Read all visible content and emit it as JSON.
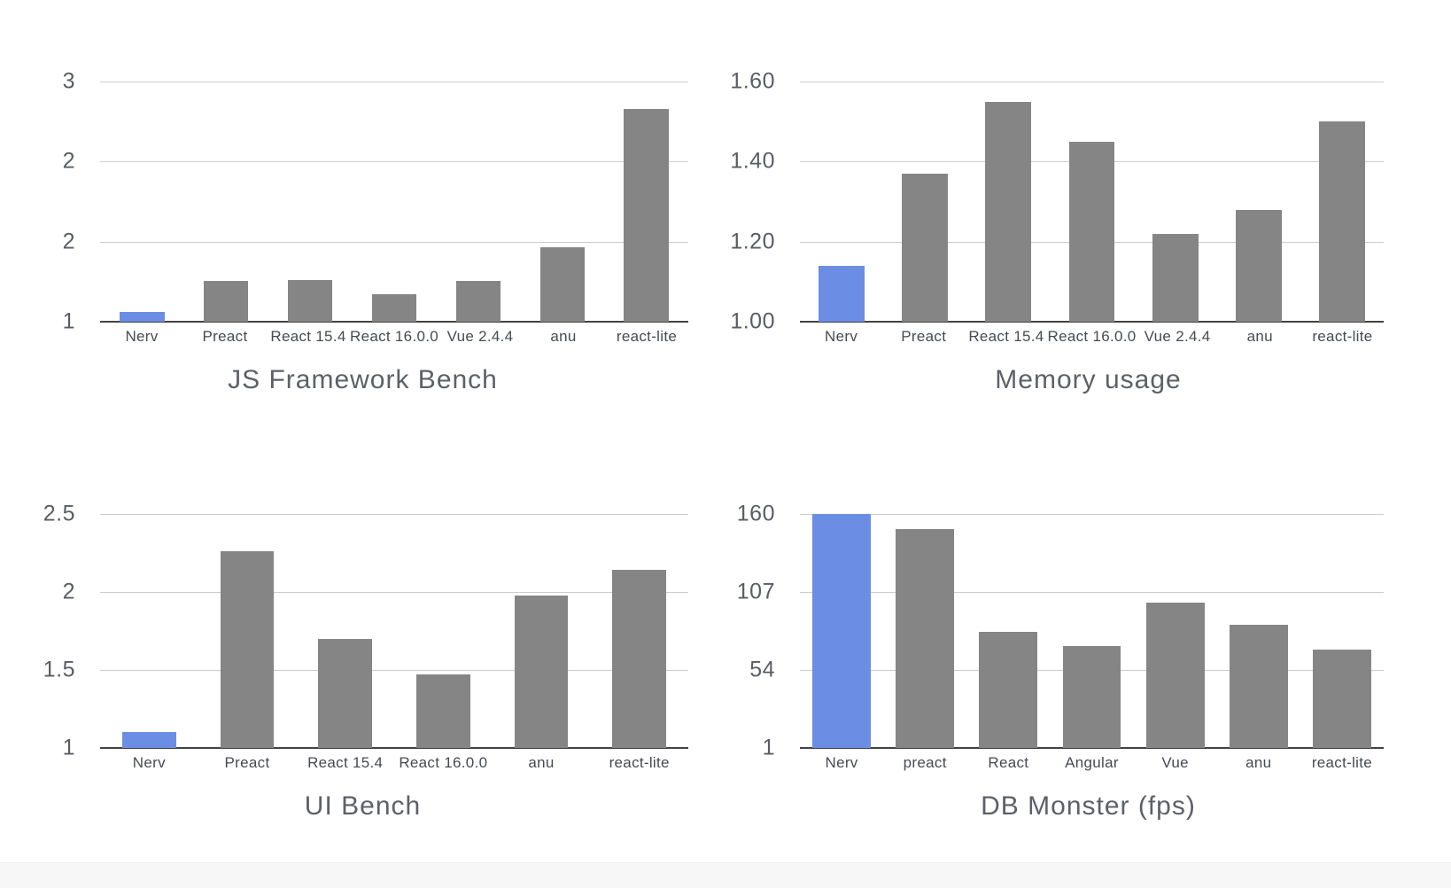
{
  "page": {
    "background": "#ffffff",
    "footer_band_color": "#f7f7f8"
  },
  "colors": {
    "highlight_bar": "#6b8ee4",
    "default_bar": "#858585",
    "gridline": "#cccccc",
    "axis_line": "#424242",
    "tick_label": "#595d63",
    "category_label": "#464b52",
    "title": "#5d6167"
  },
  "chart_data": [
    {
      "type": "bar",
      "title": "JS Framework Bench",
      "categories": [
        "Nerv",
        "Preact",
        "React 15.4",
        "React 16.0.0",
        "Vue 2.4.4",
        "anu",
        "react-lite"
      ],
      "values": [
        1.08,
        1.34,
        1.35,
        1.23,
        1.34,
        1.62,
        2.77
      ],
      "highlight_index": 0,
      "ylim": [
        1,
        3
      ],
      "yticks": [
        {
          "value": 1,
          "label": "1"
        },
        {
          "value": 1.667,
          "label": "2"
        },
        {
          "value": 2.333,
          "label": "2"
        },
        {
          "value": 3,
          "label": "3"
        }
      ],
      "grid": true,
      "legend": "none",
      "bar_width_pct": 53
    },
    {
      "type": "bar",
      "title": "Memory usage",
      "categories": [
        "Nerv",
        "Preact",
        "React 15.4",
        "React 16.0.0",
        "Vue 2.4.4",
        "anu",
        "react-lite"
      ],
      "values": [
        1.14,
        1.37,
        1.55,
        1.45,
        1.22,
        1.28,
        1.5
      ],
      "highlight_index": 0,
      "ylim": [
        1.0,
        1.6
      ],
      "yticks": [
        {
          "value": 1.0,
          "label": "1.00"
        },
        {
          "value": 1.2,
          "label": "1.20"
        },
        {
          "value": 1.4,
          "label": "1.40"
        },
        {
          "value": 1.6,
          "label": "1.60"
        }
      ],
      "grid": true,
      "legend": "none",
      "bar_width_pct": 55
    },
    {
      "type": "bar",
      "title": "UI Bench",
      "categories": [
        "Nerv",
        "Preact",
        "React 15.4",
        "React 16.0.0",
        "anu",
        "react-lite"
      ],
      "values": [
        1.1,
        2.26,
        1.7,
        1.47,
        1.98,
        2.14
      ],
      "highlight_index": 0,
      "ylim": [
        1,
        2.5
      ],
      "yticks": [
        {
          "value": 1,
          "label": "1"
        },
        {
          "value": 1.5,
          "label": "1.5"
        },
        {
          "value": 2,
          "label": "2"
        },
        {
          "value": 2.5,
          "label": "2.5"
        }
      ],
      "grid": true,
      "legend": "none",
      "bar_width_pct": 55
    },
    {
      "type": "bar",
      "title": "DB Monster (fps)",
      "categories": [
        "Nerv",
        "preact",
        "React",
        "Angular",
        "Vue",
        "anu",
        "react-lite"
      ],
      "values": [
        160,
        150,
        80,
        70,
        100,
        85,
        68
      ],
      "highlight_index": 0,
      "ylim": [
        1,
        160
      ],
      "yticks": [
        {
          "value": 1,
          "label": "1"
        },
        {
          "value": 54,
          "label": "54"
        },
        {
          "value": 107,
          "label": "107"
        },
        {
          "value": 160,
          "label": "160"
        }
      ],
      "grid": true,
      "legend": "none",
      "bar_width_pct": 70
    }
  ]
}
